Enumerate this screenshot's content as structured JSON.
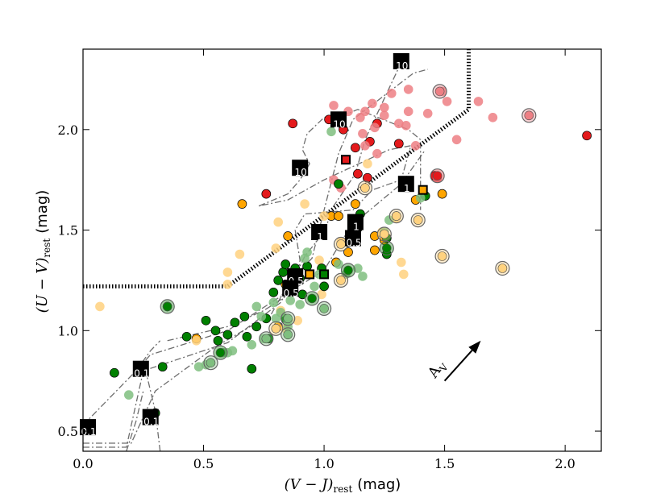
{
  "chart_data": {
    "type": "scatter",
    "title": "",
    "xlabel_math": "(V − J)",
    "xlabel_sub": "rest",
    "xlabel_unit": "(mag)",
    "ylabel_math": "(U − V)",
    "ylabel_sub": "rest",
    "ylabel_unit": "(mag)",
    "xlim": [
      0.0,
      2.15
    ],
    "ylim": [
      0.4,
      2.4
    ],
    "xticks": [
      0.0,
      0.5,
      1.0,
      1.5,
      2.0
    ],
    "xtick_labels": [
      "0.0",
      "0.5",
      "1.0",
      "1.5",
      "2.0"
    ],
    "yticks": [
      0.5,
      1.0,
      1.5,
      2.0
    ],
    "ytick_labels": [
      "0.5",
      "1.0",
      "1.5",
      "2.0"
    ],
    "colors": {
      "red": "#e41a1c",
      "red_light": "#ee7f84",
      "orange": "#ffa500",
      "orange_light": "#ffd27f",
      "green": "#008000",
      "green_light": "#7fbf7f"
    },
    "selection_boundary": {
      "style": "dotted",
      "x": [
        0.0,
        0.6,
        1.6,
        1.6
      ],
      "y": [
        1.22,
        1.22,
        2.1,
        2.4
      ]
    },
    "reddening_vector": {
      "label": "A",
      "label_sub": "V",
      "from": [
        1.5,
        0.75
      ],
      "to": [
        1.65,
        0.95
      ]
    },
    "tracks": [
      {
        "name": "track-1",
        "x": [
          0.0,
          0.22,
          0.28,
          0.6,
          0.82,
          0.92,
          1.0,
          1.08,
          1.12,
          1.32,
          1.42
        ],
        "y": [
          0.53,
          0.8,
          0.88,
          1.0,
          1.17,
          1.24,
          1.3,
          1.46,
          1.53,
          1.73,
          1.9
        ]
      },
      {
        "name": "track-2",
        "x": [
          0.0,
          0.18,
          0.25,
          0.6,
          0.82,
          0.88,
          0.92,
          1.0,
          1.04,
          1.13,
          1.17,
          1.33
        ],
        "y": [
          0.42,
          0.42,
          0.8,
          0.94,
          1.14,
          1.27,
          1.37,
          1.49,
          1.62,
          1.78,
          1.95,
          2.36
        ]
      },
      {
        "name": "track-3",
        "x": [
          0.0,
          0.2,
          0.3,
          0.55,
          0.78,
          0.86,
          0.95,
          1.0,
          1.06,
          1.12,
          1.37,
          1.43
        ],
        "y": [
          0.44,
          0.44,
          0.7,
          0.92,
          1.08,
          1.25,
          1.36,
          1.6,
          1.88,
          2.05,
          2.28,
          2.3
        ]
      },
      {
        "name": "track-4",
        "x": [
          0.73,
          0.85,
          0.9,
          0.94,
          0.91,
          0.93,
          1.0,
          1.1,
          1.14,
          1.35,
          1.4,
          1.4
        ],
        "y": [
          1.62,
          1.68,
          1.75,
          1.83,
          1.9,
          1.98,
          2.06,
          2.08,
          2.1,
          2.0,
          1.95,
          1.6
        ]
      },
      {
        "name": "track-5",
        "x": [
          0.35,
          0.6,
          0.75,
          0.88,
          0.9,
          0.88,
          0.92,
          1.12,
          1.2,
          1.32,
          1.36,
          1.27,
          1.0,
          0.85,
          0.73
        ],
        "y": [
          0.95,
          1.02,
          1.1,
          1.2,
          1.35,
          1.5,
          1.58,
          1.6,
          1.7,
          1.75,
          1.92,
          1.9,
          1.75,
          1.65,
          1.62
        ]
      },
      {
        "name": "track-6",
        "x": [
          0.32,
          0.3,
          0.25,
          0.28,
          0.32
        ],
        "y": [
          0.4,
          0.6,
          0.85,
          0.9,
          0.95
        ]
      },
      {
        "name": "track-7",
        "x": [
          0.18,
          0.22,
          0.25
        ],
        "y": [
          0.4,
          0.55,
          0.7
        ]
      }
    ],
    "markers": [
      {
        "x": 0.02,
        "y": 0.52,
        "label": "0.1"
      },
      {
        "x": 0.24,
        "y": 0.81,
        "label": "0.1"
      },
      {
        "x": 0.28,
        "y": 0.57,
        "label": "0.1"
      },
      {
        "x": 0.88,
        "y": 1.27,
        "label": "0.5"
      },
      {
        "x": 0.86,
        "y": 1.21,
        "label": "0.5"
      },
      {
        "x": 1.12,
        "y": 1.46,
        "label": "0.5"
      },
      {
        "x": 0.98,
        "y": 1.49,
        "label": "1"
      },
      {
        "x": 1.13,
        "y": 1.54,
        "label": "1"
      },
      {
        "x": 1.34,
        "y": 1.73,
        "label": "1"
      },
      {
        "x": 0.9,
        "y": 1.81,
        "label": "10"
      },
      {
        "x": 1.06,
        "y": 2.05,
        "label": "10"
      },
      {
        "x": 1.32,
        "y": 2.34,
        "label": "10"
      }
    ],
    "highlight_squares": [
      {
        "x": 1.09,
        "y": 1.85,
        "color": "red"
      },
      {
        "x": 1.41,
        "y": 1.7,
        "color": "orange"
      },
      {
        "x": 0.94,
        "y": 1.28,
        "color": "orange"
      },
      {
        "x": 1.0,
        "y": 1.28,
        "color": "green"
      }
    ],
    "series": [
      {
        "name": "red-solid",
        "color": "red",
        "alpha": 1.0,
        "points": [
          [
            0.87,
            2.03
          ],
          [
            1.02,
            2.05
          ],
          [
            1.08,
            2.0
          ],
          [
            1.22,
            2.03
          ],
          [
            1.13,
            1.91
          ],
          [
            1.19,
            1.94
          ],
          [
            1.31,
            1.93
          ],
          [
            1.14,
            1.78
          ],
          [
            1.18,
            1.76
          ],
          [
            0.76,
            1.68
          ],
          [
            1.46,
            1.77
          ],
          [
            2.09,
            1.97
          ]
        ]
      },
      {
        "name": "red-faint",
        "color": "red_light",
        "alpha": 1.0,
        "points": [
          [
            1.04,
            2.12
          ],
          [
            1.1,
            2.09
          ],
          [
            1.15,
            2.06
          ],
          [
            1.17,
            2.09
          ],
          [
            1.2,
            2.13
          ],
          [
            1.25,
            2.11
          ],
          [
            1.28,
            2.18
          ],
          [
            1.21,
            2.01
          ],
          [
            1.25,
            2.07
          ],
          [
            1.31,
            2.03
          ],
          [
            1.35,
            2.09
          ],
          [
            1.35,
            2.2
          ],
          [
            1.43,
            2.08
          ],
          [
            1.49,
            2.19
          ],
          [
            1.51,
            2.14
          ],
          [
            1.55,
            1.95
          ],
          [
            1.64,
            2.14
          ],
          [
            1.7,
            2.06
          ],
          [
            1.85,
            2.07
          ],
          [
            1.16,
            1.98
          ],
          [
            1.22,
            1.88
          ],
          [
            1.17,
            1.92
          ],
          [
            1.34,
            2.02
          ],
          [
            1.38,
            1.92
          ],
          [
            1.04,
            1.75
          ],
          [
            1.07,
            1.71
          ],
          [
            1.47,
            1.76
          ]
        ]
      },
      {
        "name": "orange-solid",
        "color": "orange",
        "alpha": 1.0,
        "points": [
          [
            0.66,
            1.63
          ],
          [
            0.85,
            1.47
          ],
          [
            1.03,
            1.57
          ],
          [
            1.13,
            1.63
          ],
          [
            1.12,
            1.48
          ],
          [
            1.21,
            1.47
          ],
          [
            1.25,
            1.45
          ],
          [
            1.3,
            1.57
          ],
          [
            1.21,
            1.4
          ],
          [
            1.1,
            1.44
          ],
          [
            1.38,
            1.65
          ],
          [
            1.49,
            1.68
          ],
          [
            1.1,
            1.39
          ],
          [
            1.05,
            1.34
          ],
          [
            0.84,
            1.23
          ],
          [
            0.81,
            1.02
          ],
          [
            0.47,
            0.96
          ],
          [
            1.06,
            1.57
          ]
        ]
      },
      {
        "name": "orange-faint",
        "color": "orange_light",
        "alpha": 1.0,
        "points": [
          [
            0.07,
            1.12
          ],
          [
            0.6,
            1.29
          ],
          [
            0.65,
            1.38
          ],
          [
            0.8,
            1.41
          ],
          [
            0.81,
            1.54
          ],
          [
            0.92,
            1.63
          ],
          [
            1.0,
            1.57
          ],
          [
            1.17,
            1.71
          ],
          [
            1.18,
            1.83
          ],
          [
            1.3,
            1.56
          ],
          [
            1.39,
            1.55
          ],
          [
            1.24,
            1.49
          ],
          [
            1.07,
            1.44
          ],
          [
            0.98,
            1.35
          ],
          [
            0.99,
            1.18
          ],
          [
            1.07,
            1.25
          ],
          [
            1.32,
            1.34
          ],
          [
            1.33,
            1.28
          ],
          [
            1.49,
            1.37
          ],
          [
            1.74,
            1.31
          ],
          [
            0.6,
            1.23
          ],
          [
            0.82,
            1.1
          ],
          [
            0.89,
            1.05
          ],
          [
            0.47,
            0.95
          ],
          [
            0.84,
            1.01
          ]
        ]
      },
      {
        "name": "green-solid",
        "color": "green",
        "alpha": 1.0,
        "points": [
          [
            0.13,
            0.79
          ],
          [
            0.33,
            0.82
          ],
          [
            0.3,
            0.59
          ],
          [
            0.43,
            0.97
          ],
          [
            0.51,
            1.05
          ],
          [
            0.55,
            1.0
          ],
          [
            0.56,
            0.95
          ],
          [
            0.6,
            0.98
          ],
          [
            0.63,
            1.04
          ],
          [
            0.67,
            1.07
          ],
          [
            0.68,
            0.97
          ],
          [
            0.7,
            0.81
          ],
          [
            0.72,
            1.02
          ],
          [
            0.77,
            0.96
          ],
          [
            0.76,
            1.06
          ],
          [
            0.79,
            1.19
          ],
          [
            0.81,
            1.25
          ],
          [
            0.83,
            1.29
          ],
          [
            0.84,
            1.33
          ],
          [
            0.86,
            1.21
          ],
          [
            0.88,
            1.31
          ],
          [
            0.9,
            1.26
          ],
          [
            0.91,
            1.18
          ],
          [
            0.93,
            1.32
          ],
          [
            0.99,
            1.31
          ],
          [
            1.0,
            1.28
          ],
          [
            0.84,
            1.06
          ],
          [
            1.06,
            1.73
          ],
          [
            1.26,
            1.38
          ],
          [
            1.26,
            1.46
          ],
          [
            1.14,
            1.51
          ],
          [
            1.15,
            1.58
          ],
          [
            1.42,
            1.67
          ],
          [
            1.0,
            1.22
          ],
          [
            0.35,
            1.12
          ]
        ]
      },
      {
        "name": "green-faint",
        "color": "green_light",
        "alpha": 1.0,
        "points": [
          [
            0.19,
            0.68
          ],
          [
            0.48,
            0.82
          ],
          [
            0.51,
            0.83
          ],
          [
            0.6,
            0.89
          ],
          [
            0.62,
            0.9
          ],
          [
            0.7,
            0.93
          ],
          [
            0.72,
            1.12
          ],
          [
            0.74,
            1.07
          ],
          [
            0.75,
            0.96
          ],
          [
            0.79,
            1.14
          ],
          [
            0.8,
            1.06
          ],
          [
            0.82,
            1.09
          ],
          [
            0.85,
            1.05
          ],
          [
            0.86,
            1.15
          ],
          [
            0.9,
            1.13
          ],
          [
            0.93,
            1.39
          ],
          [
            0.92,
            1.36
          ],
          [
            0.96,
            1.22
          ],
          [
            0.98,
            1.28
          ],
          [
            1.03,
            1.99
          ],
          [
            1.06,
            1.33
          ],
          [
            1.09,
            1.28
          ],
          [
            1.14,
            1.31
          ],
          [
            1.16,
            1.27
          ],
          [
            1.25,
            1.49
          ],
          [
            1.27,
            1.55
          ],
          [
            1.4,
            1.66
          ],
          [
            0.85,
            1.02
          ],
          [
            1.0,
            1.11
          ],
          [
            0.58,
            0.89
          ]
        ]
      }
    ],
    "ringed_points": [
      {
        "x": 1.48,
        "y": 2.19,
        "color": "red_light"
      },
      {
        "x": 1.85,
        "y": 2.07,
        "color": "red_light"
      },
      {
        "x": 1.47,
        "y": 1.77,
        "color": "red"
      },
      {
        "x": 1.17,
        "y": 1.71,
        "color": "orange_light"
      },
      {
        "x": 1.3,
        "y": 1.57,
        "color": "orange_light"
      },
      {
        "x": 1.39,
        "y": 1.55,
        "color": "orange_light"
      },
      {
        "x": 1.25,
        "y": 1.48,
        "color": "orange_light"
      },
      {
        "x": 1.07,
        "y": 1.43,
        "color": "orange_light"
      },
      {
        "x": 1.49,
        "y": 1.37,
        "color": "orange_light"
      },
      {
        "x": 1.74,
        "y": 1.31,
        "color": "orange_light"
      },
      {
        "x": 1.07,
        "y": 1.25,
        "color": "orange_light"
      },
      {
        "x": 0.35,
        "y": 1.12,
        "color": "green"
      },
      {
        "x": 0.95,
        "y": 1.16,
        "color": "green"
      },
      {
        "x": 1.0,
        "y": 1.11,
        "color": "green_light"
      },
      {
        "x": 1.1,
        "y": 1.3,
        "color": "green"
      },
      {
        "x": 0.85,
        "y": 0.98,
        "color": "green_light"
      },
      {
        "x": 0.76,
        "y": 0.96,
        "color": "green_light"
      },
      {
        "x": 0.85,
        "y": 1.06,
        "color": "green_light"
      },
      {
        "x": 0.53,
        "y": 0.84,
        "color": "green_light"
      },
      {
        "x": 0.57,
        "y": 0.89,
        "color": "green"
      },
      {
        "x": 1.26,
        "y": 1.41,
        "color": "green"
      },
      {
        "x": 0.8,
        "y": 1.01,
        "color": "orange_light"
      }
    ]
  }
}
